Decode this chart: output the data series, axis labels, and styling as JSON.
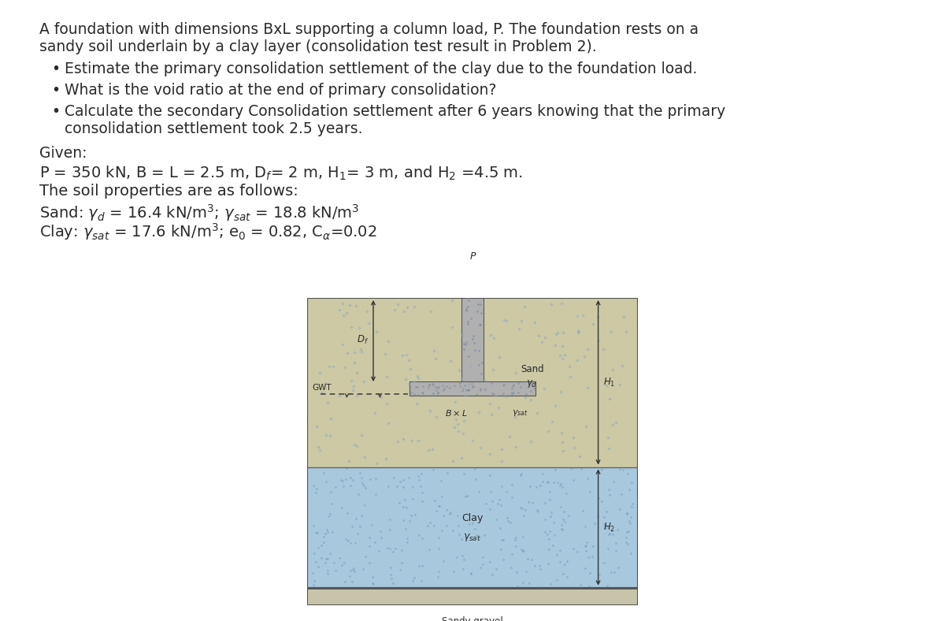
{
  "bg_color": "#ffffff",
  "text_color": "#2a2a2a",
  "bullets": [
    "Estimate the primary consolidation settlement of the clay due to the foundation load.",
    "What is the void ratio at the end of primary consolidation?",
    "Calculate the secondary Consolidation settlement after 6 years knowing that the primary consolidation settlement took 2.5 years."
  ],
  "diagram": {
    "sand_color": "#cdc9a5",
    "sand_dot_color": "#8aacbb",
    "clay_color": "#a8c8de",
    "clay_dot_color": "#5588aa",
    "gravel_color": "#c8c4aa",
    "concrete_color": "#b0b0b0",
    "concrete_dot_color": "#7888a0",
    "gwt_color": "#3366aa",
    "dim_color": "#333333"
  }
}
